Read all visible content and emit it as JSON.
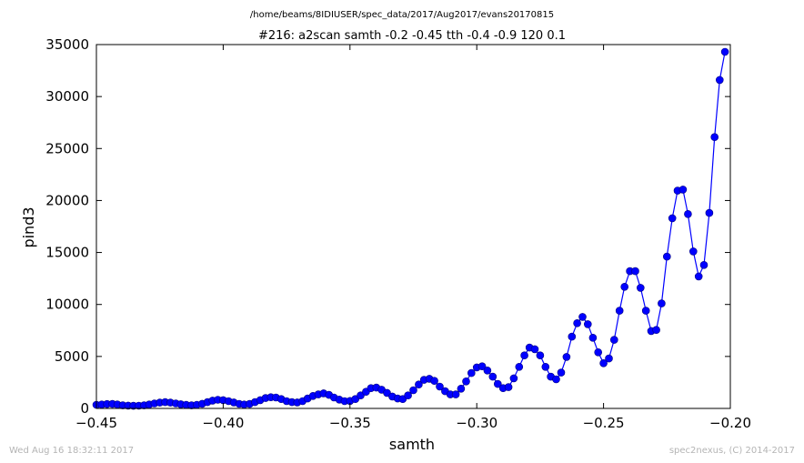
{
  "figure": {
    "suptitle": "/home/beams/8IDIUSER/spec_data/2017/Aug2017/evans20170815",
    "timestamp": "Wed Aug 16 18:32:11 2017",
    "credit": "spec2nexus, (C) 2014-2017"
  },
  "colors": {
    "series": "#0000ff",
    "marker_edge": "#000080",
    "axes": "#000000"
  },
  "chart_data": {
    "type": "line",
    "title": "#216: a2scan  samth -0.2 -0.45  tth -0.4 -0.9  120 0.1",
    "xlabel": "samth",
    "ylabel": "pind3",
    "xlim": [
      -0.45,
      -0.2
    ],
    "ylim": [
      0,
      35000
    ],
    "xticks": [
      -0.45,
      -0.4,
      -0.35,
      -0.3,
      -0.25,
      -0.2
    ],
    "xtick_labels": [
      "−0.45",
      "−0.40",
      "−0.35",
      "−0.30",
      "−0.25",
      "−0.20"
    ],
    "yticks": [
      0,
      5000,
      10000,
      15000,
      20000,
      25000,
      30000,
      35000
    ],
    "ytick_labels": [
      "0",
      "5000",
      "10000",
      "15000",
      "20000",
      "25000",
      "30000",
      "35000"
    ],
    "grid": false,
    "marker": "circle",
    "series": [
      {
        "values": [
          [
            -0.45,
            350
          ],
          [
            -0.4479,
            380
          ],
          [
            -0.4458,
            420
          ],
          [
            -0.4437,
            430
          ],
          [
            -0.4417,
            380
          ],
          [
            -0.4396,
            300
          ],
          [
            -0.4375,
            270
          ],
          [
            -0.4354,
            250
          ],
          [
            -0.4333,
            260
          ],
          [
            -0.4312,
            300
          ],
          [
            -0.4292,
            380
          ],
          [
            -0.4271,
            480
          ],
          [
            -0.425,
            560
          ],
          [
            -0.4229,
            600
          ],
          [
            -0.4208,
            560
          ],
          [
            -0.4187,
            480
          ],
          [
            -0.4167,
            400
          ],
          [
            -0.4146,
            340
          ],
          [
            -0.4125,
            300
          ],
          [
            -0.4104,
            350
          ],
          [
            -0.4083,
            450
          ],
          [
            -0.4062,
            600
          ],
          [
            -0.4042,
            750
          ],
          [
            -0.4021,
            830
          ],
          [
            -0.4,
            800
          ],
          [
            -0.3979,
            700
          ],
          [
            -0.3958,
            580
          ],
          [
            -0.3937,
            440
          ],
          [
            -0.3917,
            380
          ],
          [
            -0.3896,
            430
          ],
          [
            -0.3875,
            600
          ],
          [
            -0.3854,
            800
          ],
          [
            -0.3833,
            1000
          ],
          [
            -0.3812,
            1080
          ],
          [
            -0.3792,
            1050
          ],
          [
            -0.3771,
            900
          ],
          [
            -0.375,
            700
          ],
          [
            -0.3729,
            600
          ],
          [
            -0.3708,
            580
          ],
          [
            -0.3687,
            700
          ],
          [
            -0.3667,
            950
          ],
          [
            -0.3646,
            1200
          ],
          [
            -0.3625,
            1350
          ],
          [
            -0.3604,
            1450
          ],
          [
            -0.3583,
            1300
          ],
          [
            -0.3563,
            1050
          ],
          [
            -0.3542,
            850
          ],
          [
            -0.3521,
            700
          ],
          [
            -0.35,
            720
          ],
          [
            -0.3479,
            900
          ],
          [
            -0.3458,
            1250
          ],
          [
            -0.3437,
            1600
          ],
          [
            -0.3417,
            1950
          ],
          [
            -0.3396,
            2000
          ],
          [
            -0.3375,
            1800
          ],
          [
            -0.3354,
            1500
          ],
          [
            -0.3333,
            1150
          ],
          [
            -0.3312,
            950
          ],
          [
            -0.3292,
            900
          ],
          [
            -0.3271,
            1250
          ],
          [
            -0.325,
            1750
          ],
          [
            -0.3229,
            2300
          ],
          [
            -0.3208,
            2750
          ],
          [
            -0.3187,
            2850
          ],
          [
            -0.3167,
            2650
          ],
          [
            -0.3146,
            2100
          ],
          [
            -0.3125,
            1650
          ],
          [
            -0.3104,
            1350
          ],
          [
            -0.3083,
            1350
          ],
          [
            -0.3062,
            1900
          ],
          [
            -0.3042,
            2600
          ],
          [
            -0.3021,
            3400
          ],
          [
            -0.3,
            3950
          ],
          [
            -0.2979,
            4050
          ],
          [
            -0.2958,
            3650
          ],
          [
            -0.2937,
            3050
          ],
          [
            -0.2917,
            2350
          ],
          [
            -0.2896,
            1950
          ],
          [
            -0.2875,
            2050
          ],
          [
            -0.2854,
            2900
          ],
          [
            -0.2833,
            4000
          ],
          [
            -0.2812,
            5100
          ],
          [
            -0.2792,
            5850
          ],
          [
            -0.2771,
            5700
          ],
          [
            -0.275,
            5100
          ],
          [
            -0.2729,
            4000
          ],
          [
            -0.2708,
            3050
          ],
          [
            -0.2687,
            2800
          ],
          [
            -0.2667,
            3450
          ],
          [
            -0.2646,
            4950
          ],
          [
            -0.2625,
            6900
          ],
          [
            -0.2604,
            8200
          ],
          [
            -0.2583,
            8800
          ],
          [
            -0.2562,
            8100
          ],
          [
            -0.2542,
            6800
          ],
          [
            -0.2521,
            5400
          ],
          [
            -0.25,
            4350
          ],
          [
            -0.2479,
            4800
          ],
          [
            -0.2458,
            6600
          ],
          [
            -0.2437,
            9400
          ],
          [
            -0.2417,
            11700
          ],
          [
            -0.2396,
            13200
          ],
          [
            -0.2375,
            13200
          ],
          [
            -0.2354,
            11600
          ],
          [
            -0.2333,
            9400
          ],
          [
            -0.2312,
            7450
          ],
          [
            -0.2292,
            7550
          ],
          [
            -0.2271,
            10100
          ],
          [
            -0.225,
            14600
          ],
          [
            -0.2229,
            18300
          ],
          [
            -0.2208,
            20950
          ],
          [
            -0.2187,
            21050
          ],
          [
            -0.2167,
            18700
          ],
          [
            -0.2146,
            15100
          ],
          [
            -0.2125,
            12700
          ],
          [
            -0.2104,
            13800
          ],
          [
            -0.2083,
            18800
          ],
          [
            -0.2062,
            26100
          ],
          [
            -0.2042,
            31600
          ],
          [
            -0.2021,
            34300
          ]
        ]
      }
    ]
  }
}
